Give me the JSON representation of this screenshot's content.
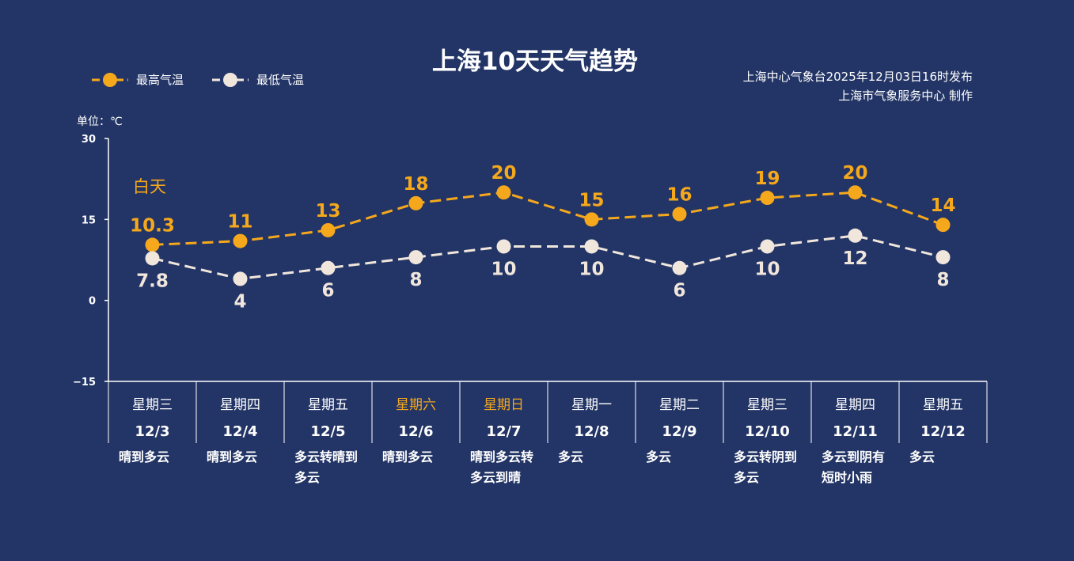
{
  "title": "上海10天天气趋势",
  "issuer_line1": "上海中心气象台2025年12月03日16时发布",
  "issuer_line2": "上海市气象服务中心  制作",
  "unit_label": "单位：℃",
  "daytime_label": "白天",
  "colors": {
    "background": "#233566",
    "high": "#f5a81c",
    "low": "#f0e6dc"
  },
  "chart_data": {
    "type": "line",
    "categories": [
      "12/3",
      "12/4",
      "12/5",
      "12/6",
      "12/7",
      "12/8",
      "12/9",
      "12/10",
      "12/11",
      "12/12"
    ],
    "weekdays": [
      "星期三",
      "星期四",
      "星期五",
      "星期六",
      "星期日",
      "星期一",
      "星期二",
      "星期三",
      "星期四",
      "星期五"
    ],
    "weekend": [
      false,
      false,
      false,
      true,
      true,
      false,
      false,
      false,
      false,
      false
    ],
    "weather": [
      "晴到多云",
      "晴到多云",
      "多云转晴到多云",
      "晴到多云",
      "晴到多云转多云到晴",
      "多云",
      "多云",
      "多云转阴到多云",
      "多云到阴有短时小雨",
      "多云"
    ],
    "weather_lines": [
      [
        "晴到多云"
      ],
      [
        "晴到多云"
      ],
      [
        "多云转晴到",
        "多云"
      ],
      [
        "晴到多云"
      ],
      [
        "晴到多云转",
        "多云到晴"
      ],
      [
        "多云"
      ],
      [
        "多云"
      ],
      [
        "多云转阴到",
        "多云"
      ],
      [
        "多云到阴有",
        "短时小雨"
      ],
      [
        "多云"
      ]
    ],
    "series": [
      {
        "name": "最高气温",
        "values": [
          10.3,
          11,
          13,
          18,
          20,
          15,
          16,
          19,
          20,
          14
        ],
        "labels": [
          "10.3",
          "11",
          "13",
          "18",
          "20",
          "15",
          "16",
          "19",
          "20",
          "14"
        ]
      },
      {
        "name": "最低气温",
        "values": [
          7.8,
          4,
          6,
          8,
          10,
          10,
          6,
          10,
          12,
          8
        ],
        "labels": [
          "7.8",
          "4",
          "6",
          "8",
          "10",
          "10",
          "6",
          "10",
          "12",
          "8"
        ]
      }
    ],
    "ylim": [
      -15,
      30
    ],
    "yticks": [
      30,
      15,
      0,
      -15
    ],
    "ytick_labels": [
      "30",
      "15",
      "0",
      "−15"
    ],
    "grid": false,
    "legend": "top-left"
  }
}
